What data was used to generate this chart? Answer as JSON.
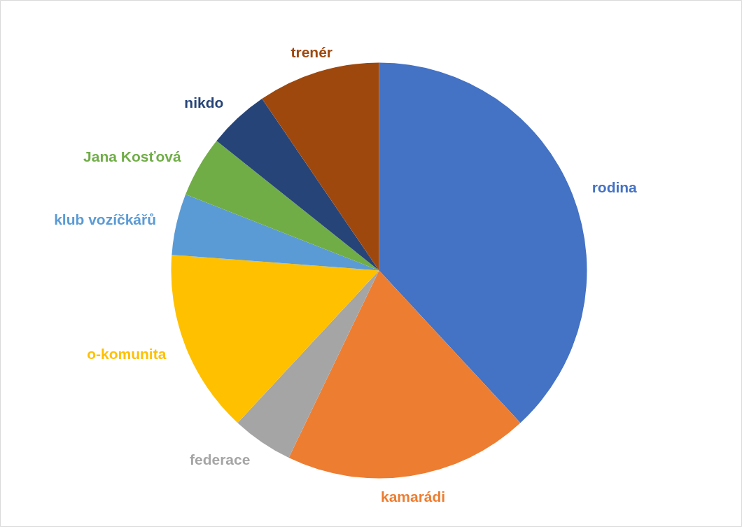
{
  "chart_data": {
    "type": "pie",
    "categories": [
      "rodina",
      "kamarádi",
      "federace",
      "o-komunita",
      "klub vozíčkářů",
      "Jana Kosťová",
      "nikdo",
      "trenér"
    ],
    "values": [
      38.1,
      19.05,
      4.76,
      14.29,
      4.76,
      4.76,
      4.76,
      9.52
    ],
    "colors": [
      "#4472c4",
      "#ed7d31",
      "#a5a5a5",
      "#ffc000",
      "#5b9bd5",
      "#70ad47",
      "#264478",
      "#9e480e"
    ]
  }
}
